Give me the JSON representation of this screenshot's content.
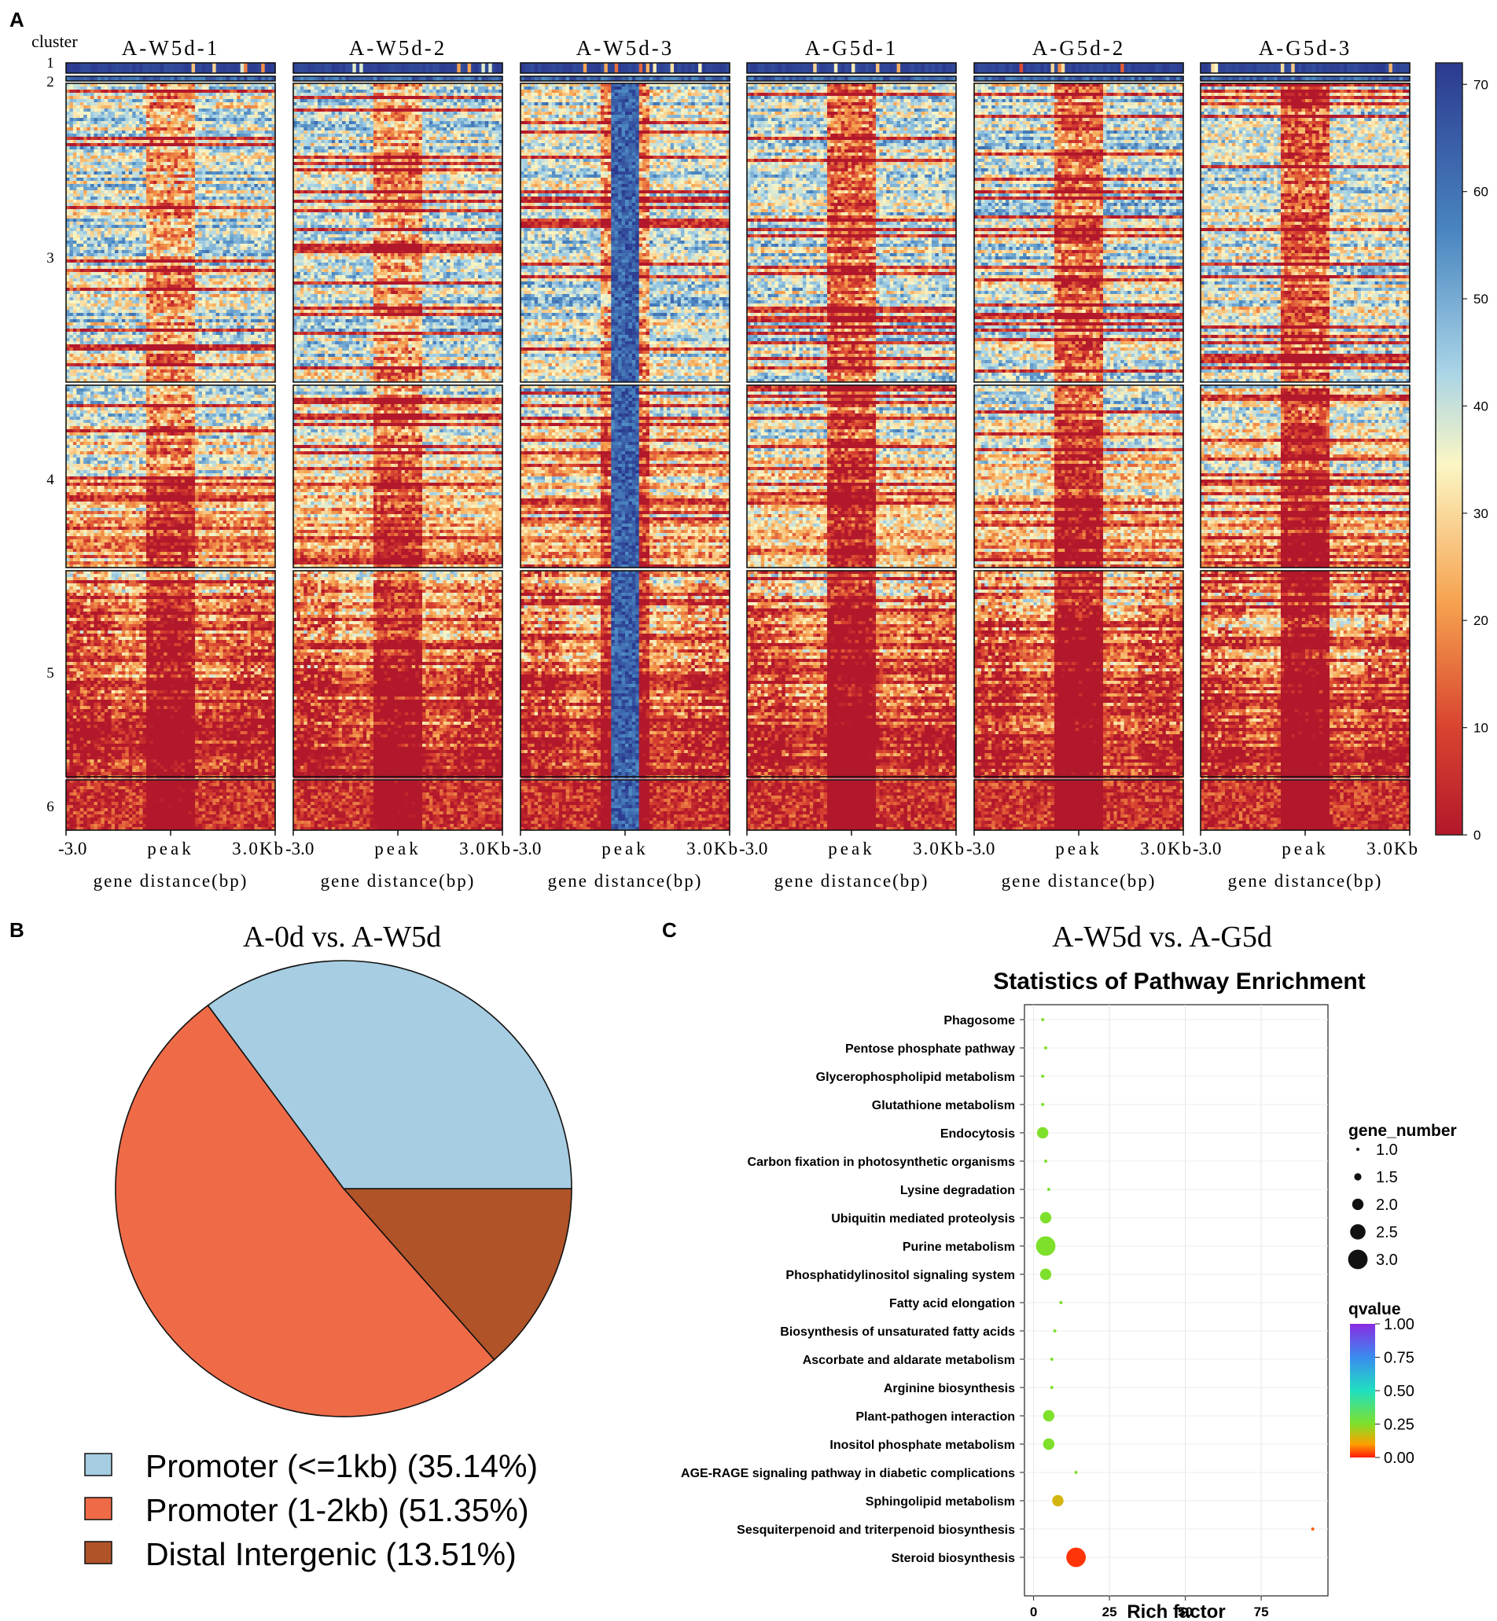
{
  "panel_labels": [
    "A",
    "B",
    "C"
  ],
  "heatmap": {
    "cluster_header": "cluster",
    "cluster_labels": [
      "1",
      "2",
      "3",
      "4",
      "5",
      "6"
    ],
    "samples": [
      "A-W5d-1",
      "A-W5d-2",
      "A-W5d-3",
      "A-G5d-1",
      "A-G5d-2",
      "A-G5d-3"
    ],
    "x_tick_left": "-3.0",
    "x_tick_center": "peak",
    "x_tick_right": "3.0Kb",
    "x_axis_label": "gene distance(bp)",
    "colorbar_ticks": [
      "70",
      "60",
      "50",
      "40",
      "30",
      "20",
      "10",
      "0"
    ],
    "colorbar_min": 0,
    "colorbar_max": 72,
    "colors": {
      "high": "#2b3a8f",
      "mid": "#fbf6c4",
      "low": "#b2182b"
    }
  },
  "chart_data": [
    {
      "type": "pie",
      "title": "A-0d vs. A-W5d",
      "slices": [
        {
          "label": "Promoter (<=1kb) (35.14%)",
          "value": 35.14,
          "color": "#a6cde1"
        },
        {
          "label": "Promoter (1-2kb) (51.35%)",
          "value": 51.35,
          "color": "#ef6b48"
        },
        {
          "label": "Distal Intergenic (13.51%)",
          "value": 13.51,
          "color": "#b05328"
        }
      ]
    },
    {
      "type": "scatter",
      "suptitle": "A-W5d vs. A-G5d",
      "title": "Statistics of Pathway Enrichment",
      "xlabel": "Rich factor",
      "xlim": [
        -3,
        97
      ],
      "xticks": [
        0,
        25,
        50,
        75
      ],
      "pathways": [
        {
          "name": "Phagosome",
          "rich_factor": 3,
          "gene_number": 1,
          "qvalue": 0.25
        },
        {
          "name": "Pentose phosphate pathway",
          "rich_factor": 4,
          "gene_number": 1,
          "qvalue": 0.25
        },
        {
          "name": "Glycerophospholipid metabolism",
          "rich_factor": 3,
          "gene_number": 1,
          "qvalue": 0.25
        },
        {
          "name": "Glutathione metabolism",
          "rich_factor": 3,
          "gene_number": 1,
          "qvalue": 0.25
        },
        {
          "name": "Endocytosis",
          "rich_factor": 3,
          "gene_number": 2,
          "qvalue": 0.25
        },
        {
          "name": "Carbon fixation in photosynthetic organisms",
          "rich_factor": 4,
          "gene_number": 1,
          "qvalue": 0.25
        },
        {
          "name": "Lysine degradation",
          "rich_factor": 5,
          "gene_number": 1,
          "qvalue": 0.25
        },
        {
          "name": "Ubiquitin mediated proteolysis",
          "rich_factor": 4,
          "gene_number": 2,
          "qvalue": 0.25
        },
        {
          "name": "Purine metabolism",
          "rich_factor": 4,
          "gene_number": 3,
          "qvalue": 0.25
        },
        {
          "name": "Phosphatidylinositol signaling system",
          "rich_factor": 4,
          "gene_number": 2,
          "qvalue": 0.25
        },
        {
          "name": "Fatty acid elongation",
          "rich_factor": 9,
          "gene_number": 1,
          "qvalue": 0.25
        },
        {
          "name": "Biosynthesis of unsaturated fatty acids",
          "rich_factor": 7,
          "gene_number": 1,
          "qvalue": 0.25
        },
        {
          "name": "Ascorbate and aldarate metabolism",
          "rich_factor": 6,
          "gene_number": 1,
          "qvalue": 0.25
        },
        {
          "name": "Arginine biosynthesis",
          "rich_factor": 6,
          "gene_number": 1,
          "qvalue": 0.25
        },
        {
          "name": "Plant-pathogen interaction",
          "rich_factor": 5,
          "gene_number": 2,
          "qvalue": 0.25
        },
        {
          "name": "Inositol phosphate metabolism",
          "rich_factor": 5,
          "gene_number": 2,
          "qvalue": 0.25
        },
        {
          "name": "AGE-RAGE signaling pathway in diabetic complications",
          "rich_factor": 14,
          "gene_number": 1,
          "qvalue": 0.25
        },
        {
          "name": "Sphingolipid metabolism",
          "rich_factor": 8,
          "gene_number": 2,
          "qvalue": 0.15
        },
        {
          "name": "Sesquiterpenoid and triterpenoid biosynthesis",
          "rich_factor": 92,
          "gene_number": 1,
          "qvalue": 0.05
        },
        {
          "name": "Steroid biosynthesis",
          "rich_factor": 14,
          "gene_number": 3,
          "qvalue": 0.02
        }
      ],
      "size_legend": {
        "title": "gene_number",
        "values": [
          1.0,
          1.5,
          2.0,
          2.5,
          3.0
        ],
        "labels": [
          "1.0",
          "1.5",
          "2.0",
          "2.5",
          "3.0"
        ]
      },
      "color_legend": {
        "title": "qvalue",
        "labels": [
          "1.00",
          "0.75",
          "0.50",
          "0.25",
          "0.00"
        ]
      }
    }
  ]
}
